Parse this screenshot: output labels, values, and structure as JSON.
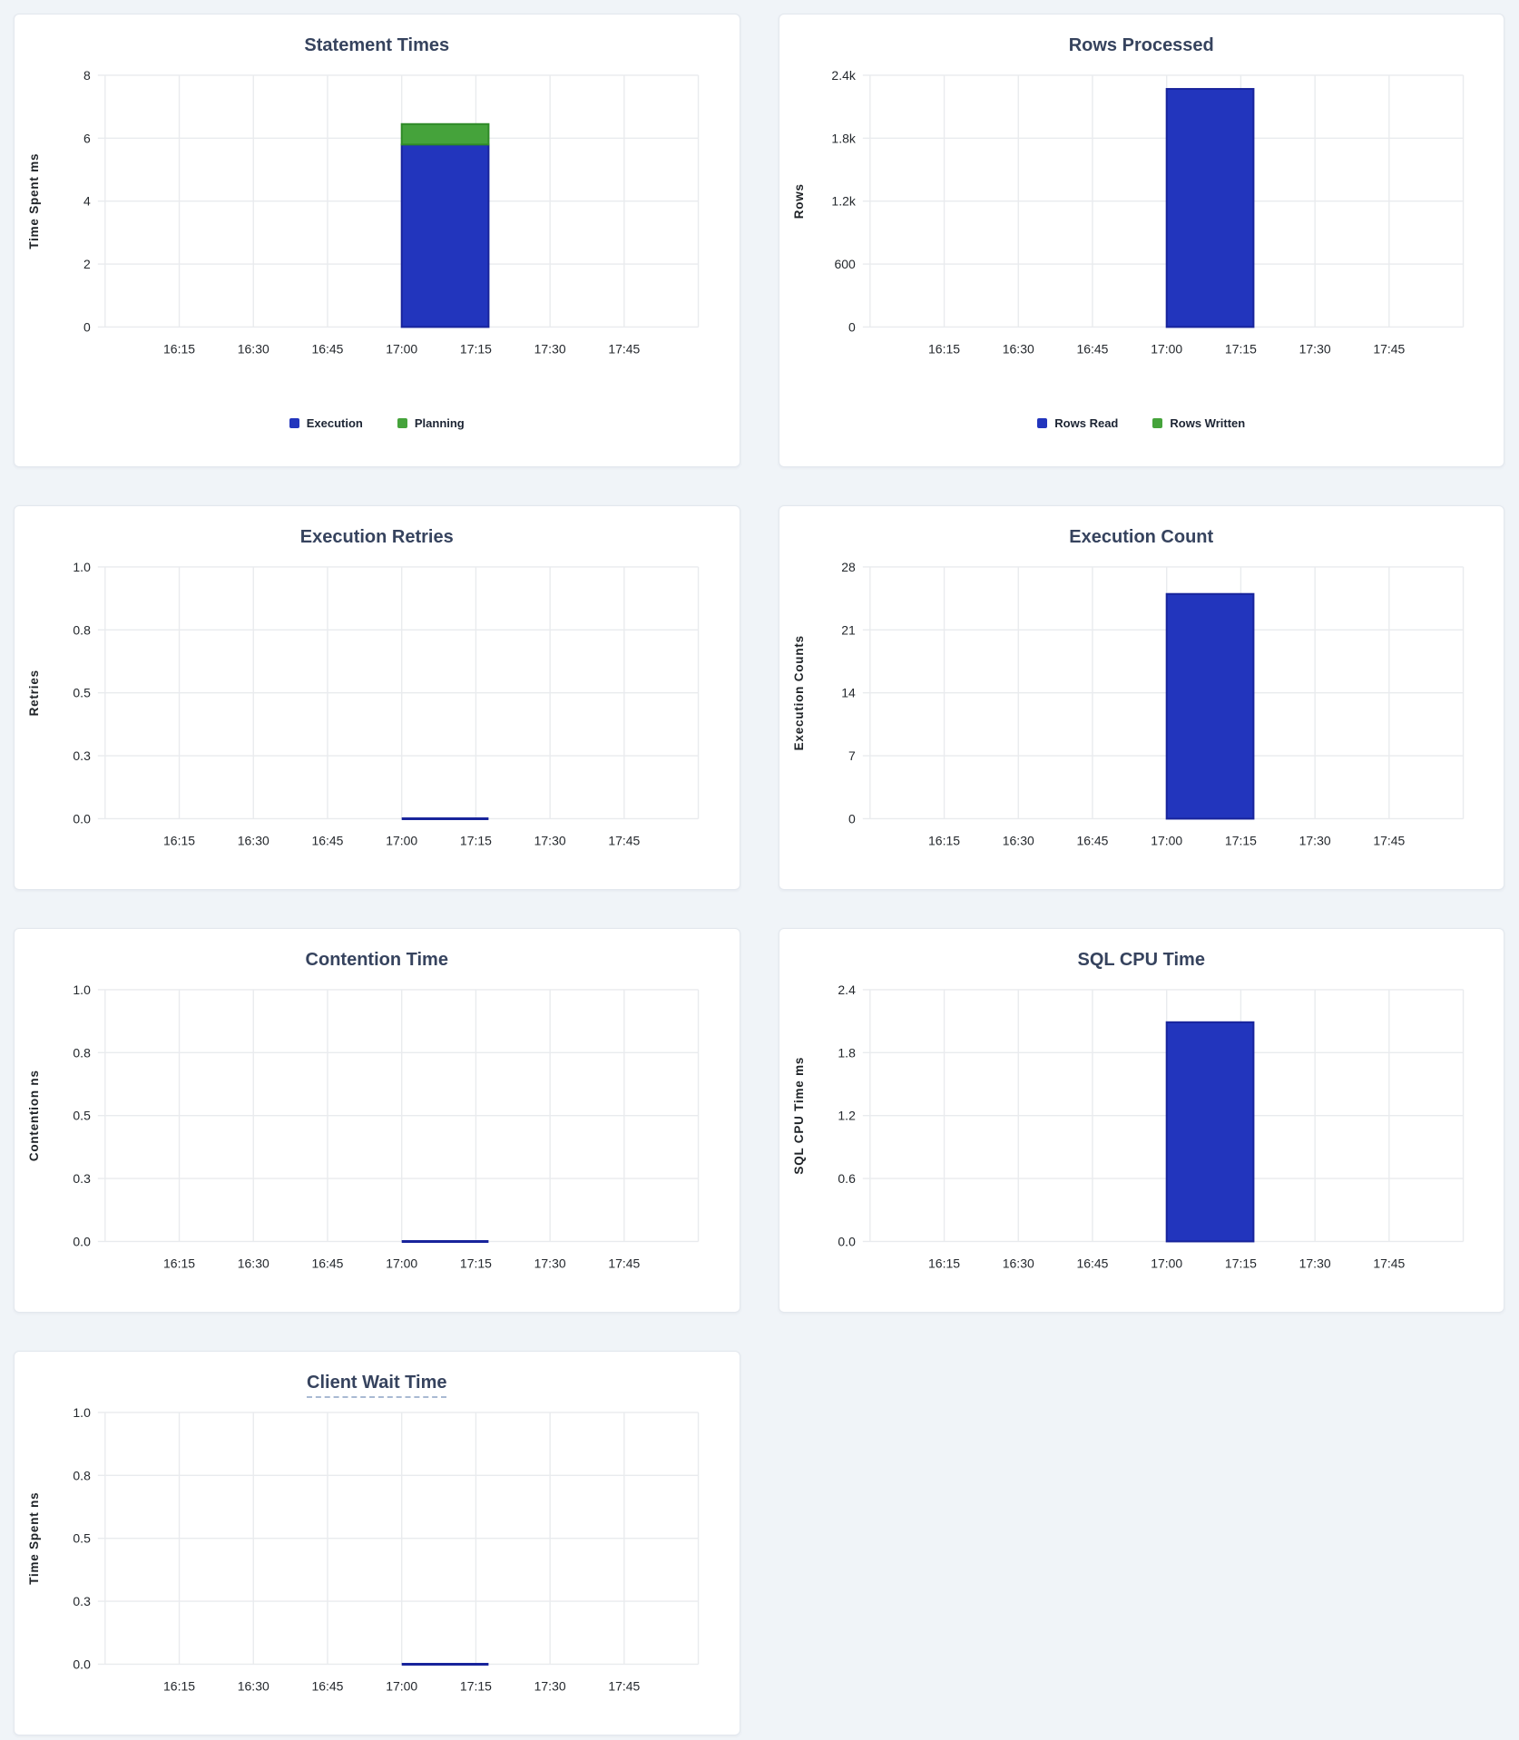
{
  "page": {
    "background": "#f0f4f8",
    "card_background": "#ffffff",
    "card_border": "#e3e8ee"
  },
  "colors": {
    "title": "#36435e",
    "tick_text": "#24282d",
    "axis_label_text": "#1f2327",
    "grid": "#e9ebee",
    "legend_text": "#1c2433",
    "blue_fill": "#2235bd",
    "blue_stroke": "#18249b",
    "green_fill": "#45a33b",
    "green_stroke": "#2f8a28",
    "tooltip_underline": "#a9bad3"
  },
  "x_axis": {
    "domain": [
      "16:00",
      "18:00"
    ],
    "tick_labels": [
      "16:15",
      "16:30",
      "16:45",
      "17:00",
      "17:15",
      "17:30",
      "17:45"
    ],
    "tick_minutes": [
      15,
      30,
      45,
      60,
      75,
      90,
      105
    ],
    "gridline_minutes": [
      0,
      15,
      30,
      45,
      60,
      75,
      90,
      105,
      120
    ]
  },
  "chart_data": [
    {
      "type": "bar",
      "title": "Statement Times",
      "ylabel": "Time Spent ms",
      "ytick_labels": [
        "0",
        "2",
        "4",
        "6",
        "8"
      ],
      "ytick_values": [
        0,
        2,
        4,
        6,
        8
      ],
      "ymax": 8,
      "grid": true,
      "legend": true,
      "legend_position": "bottom",
      "tooltip_underline": false,
      "bucket": {
        "start": "17:00",
        "end": "17:15"
      },
      "series": [
        {
          "name": "Execution",
          "value": 5.8,
          "fill": "#2235bd",
          "stroke": "#18249b"
        },
        {
          "name": "Planning",
          "value": 0.65,
          "fill": "#45a33b",
          "stroke": "#2f8a28"
        }
      ]
    },
    {
      "type": "bar",
      "title": "Rows Processed",
      "ylabel": "Rows",
      "ytick_labels": [
        "0",
        "600",
        "1.2k",
        "1.8k",
        "2.4k"
      ],
      "ytick_values": [
        0,
        600,
        1200,
        1800,
        2400
      ],
      "ymax": 2400,
      "grid": true,
      "legend": true,
      "legend_position": "bottom",
      "tooltip_underline": false,
      "bucket": {
        "start": "17:00",
        "end": "17:15"
      },
      "series": [
        {
          "name": "Rows Read",
          "value": 2270,
          "fill": "#2235bd",
          "stroke": "#18249b"
        },
        {
          "name": "Rows Written",
          "value": 0,
          "fill": "#45a33b",
          "stroke": "#2f8a28"
        }
      ]
    },
    {
      "type": "line",
      "title": "Execution Retries",
      "ylabel": "Retries",
      "ytick_labels": [
        "0.0",
        "0.3",
        "0.5",
        "0.8",
        "1.0"
      ],
      "ytick_values": [
        0,
        0.25,
        0.5,
        0.75,
        1
      ],
      "ymax": 1,
      "grid": true,
      "legend": false,
      "tooltip_underline": false,
      "bucket": {
        "start": "17:00",
        "end": "17:15"
      },
      "series": [
        {
          "name": "Retries",
          "value": 0,
          "fill": "#2235bd",
          "stroke": "#18249b"
        }
      ]
    },
    {
      "type": "bar",
      "title": "Execution Count",
      "ylabel": "Execution Counts",
      "ytick_labels": [
        "0",
        "7",
        "14",
        "21",
        "28"
      ],
      "ytick_values": [
        0,
        7,
        14,
        21,
        28
      ],
      "ymax": 28,
      "grid": true,
      "legend": false,
      "tooltip_underline": false,
      "bucket": {
        "start": "17:00",
        "end": "17:15"
      },
      "series": [
        {
          "name": "Execution Count",
          "value": 25,
          "fill": "#2235bd",
          "stroke": "#18249b"
        }
      ]
    },
    {
      "type": "line",
      "title": "Contention Time",
      "ylabel": "Contention ns",
      "ytick_labels": [
        "0.0",
        "0.3",
        "0.5",
        "0.8",
        "1.0"
      ],
      "ytick_values": [
        0,
        0.25,
        0.5,
        0.75,
        1
      ],
      "ymax": 1,
      "grid": true,
      "legend": false,
      "tooltip_underline": false,
      "bucket": {
        "start": "17:00",
        "end": "17:15"
      },
      "series": [
        {
          "name": "Contention",
          "value": 0,
          "fill": "#2235bd",
          "stroke": "#18249b"
        }
      ]
    },
    {
      "type": "bar",
      "title": "SQL CPU Time",
      "ylabel": "SQL CPU Time ms",
      "ytick_labels": [
        "0.0",
        "0.6",
        "1.2",
        "1.8",
        "2.4"
      ],
      "ytick_values": [
        0,
        0.6,
        1.2,
        1.8,
        2.4
      ],
      "ymax": 2.4,
      "grid": true,
      "legend": false,
      "tooltip_underline": false,
      "bucket": {
        "start": "17:00",
        "end": "17:15"
      },
      "series": [
        {
          "name": "SQL CPU Time",
          "value": 2.09,
          "fill": "#2235bd",
          "stroke": "#18249b"
        }
      ]
    },
    {
      "type": "line",
      "title": "Client Wait Time",
      "ylabel": "Time Spent ns",
      "ytick_labels": [
        "0.0",
        "0.3",
        "0.5",
        "0.8",
        "1.0"
      ],
      "ytick_values": [
        0,
        0.25,
        0.5,
        0.75,
        1
      ],
      "ymax": 1,
      "grid": true,
      "legend": false,
      "tooltip_underline": true,
      "bucket": {
        "start": "17:00",
        "end": "17:15"
      },
      "series": [
        {
          "name": "Client Wait",
          "value": 0,
          "fill": "#2235bd",
          "stroke": "#18249b"
        }
      ]
    }
  ]
}
